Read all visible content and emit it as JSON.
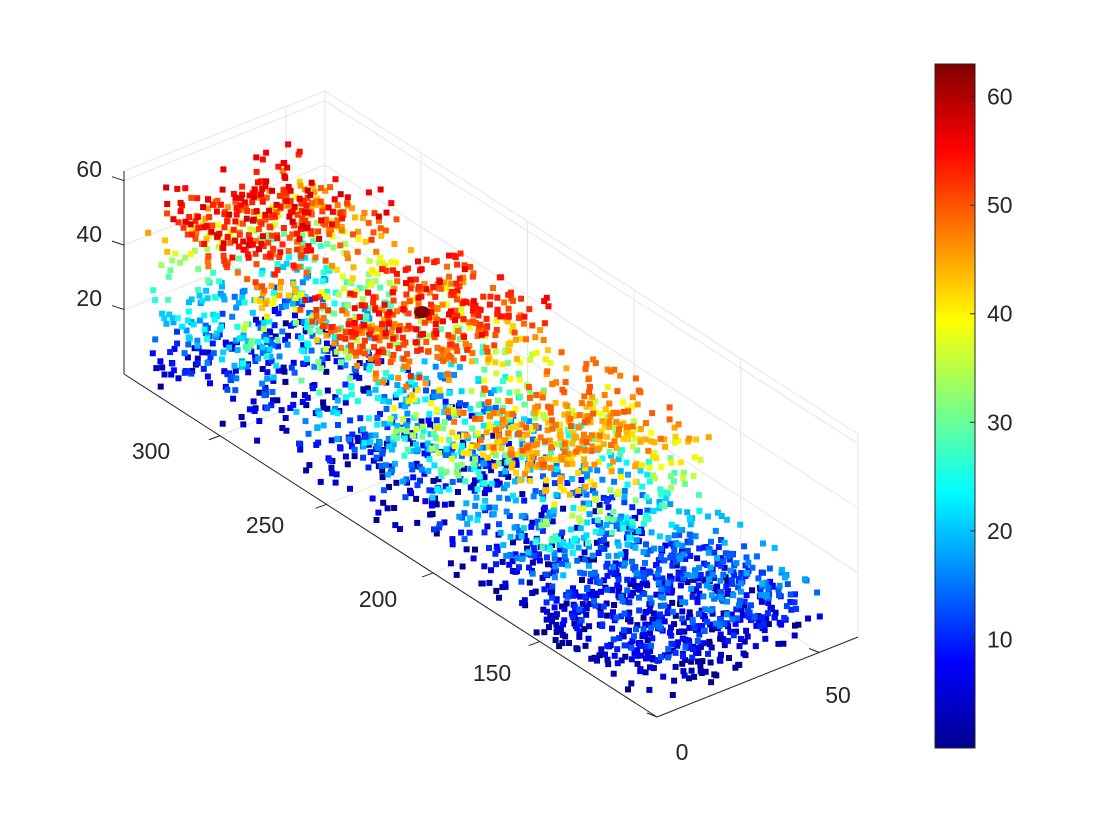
{
  "chart_data": {
    "type": "scatter3d",
    "title": "",
    "xlabel": "",
    "ylabel": "",
    "zlabel": "",
    "x_ticks": [
      0,
      50
    ],
    "y_ticks": [
      150,
      200,
      250,
      300
    ],
    "z_ticks": [
      20,
      40,
      60
    ],
    "xlim": [
      0,
      62
    ],
    "ylim": [
      95,
      345
    ],
    "zlim": [
      0,
      63
    ],
    "colormap": "jet",
    "colorbar": {
      "ticks": [
        10,
        20,
        30,
        40,
        50,
        60
      ],
      "range": [
        0,
        63
      ],
      "placement": "right"
    },
    "grid": true,
    "point_groups": [
      {
        "name": "",
        "shape": "U",
        "x_range": [
          2,
          50
        ],
        "y_range": [
          285,
          340
        ],
        "z_peak": 58
      },
      {
        "name": "",
        "shape": "U",
        "x_range": [
          2,
          50
        ],
        "y_range": [
          215,
          270
        ],
        "z_peak": 56
      },
      {
        "name": "",
        "shape": "U",
        "x_range": [
          2,
          50
        ],
        "y_range": [
          145,
          205
        ],
        "z_peak": 50
      },
      {
        "name": "",
        "shape": "flat",
        "x_range": [
          2,
          55
        ],
        "y_range": [
          100,
          155
        ],
        "z_peak": 22
      }
    ],
    "outlier": {
      "x": 15,
      "y": 228,
      "z": 63
    }
  }
}
